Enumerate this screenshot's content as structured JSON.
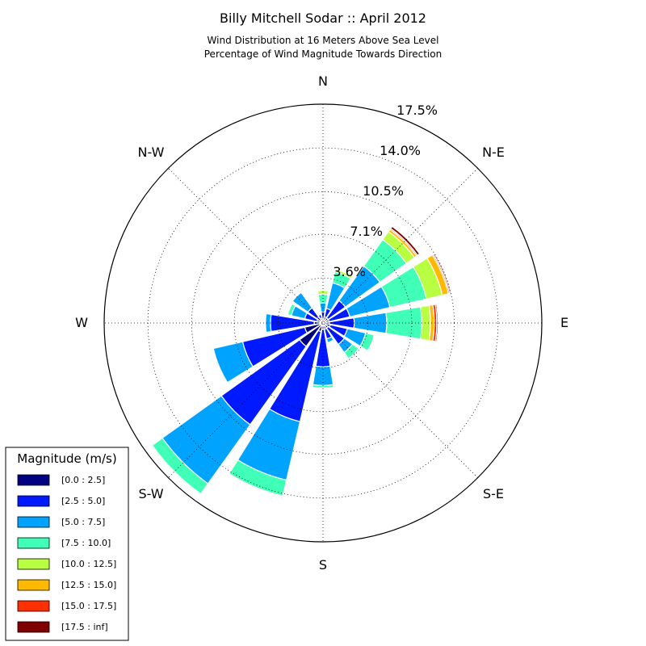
{
  "chart_data": {
    "type": "windrose",
    "title": "Billy Mitchell Sodar :: April 2012",
    "subtitle_lines": [
      "Wind Distribution at 16 Meters Above Sea Level",
      "Percentage of Wind Magnitude Towards Direction"
    ],
    "radial_ticks": [
      "3.6%",
      "7.1%",
      "10.5%",
      "14.0%",
      "17.5%"
    ],
    "radial_tick_values": [
      3.6,
      7.1,
      10.5,
      14.0,
      17.5
    ],
    "r_max": 17.5,
    "grid": true,
    "directions": [
      "N",
      "N-E",
      "E",
      "S-E",
      "S",
      "S-W",
      "W",
      "N-W"
    ],
    "legend": {
      "title": "Magnitude (m/s)",
      "placement": "lower-left",
      "bins": [
        "[0.0 : 2.5]",
        "[2.5 : 5.0]",
        "[5.0 : 7.5]",
        "[7.5 : 10.0]",
        "[10.0 : 12.5]",
        "[12.5 : 15.0]",
        "[15.0 : 17.5]",
        "[17.5 : inf]"
      ],
      "colors": [
        "#000080",
        "#0019ff",
        "#00a4ff",
        "#40ffb7",
        "#b7ff40",
        "#ffb900",
        "#ff3000",
        "#800000"
      ]
    },
    "sectors": [
      {
        "angle": 0,
        "cumulative": [
          0.4,
          0.9,
          1.6,
          2.3,
          2.6
        ]
      },
      {
        "angle": 22.5,
        "cumulative": [
          0.5,
          1.2,
          3.3,
          4.2,
          4.4
        ]
      },
      {
        "angle": 45,
        "cumulative": [
          0.5,
          2.2,
          5.6,
          8.2,
          9.0,
          9.2,
          9.3,
          9.5
        ]
      },
      {
        "angle": 67.5,
        "cumulative": [
          0.5,
          2.2,
          5.5,
          8.5,
          9.8,
          10.3,
          10.4,
          10.5
        ]
      },
      {
        "angle": 90,
        "cumulative": [
          0.5,
          2.5,
          5.1,
          7.9,
          8.6,
          8.9,
          9.1,
          9.2
        ]
      },
      {
        "angle": 112.5,
        "cumulative": [
          0.6,
          2.0,
          3.5,
          4.2
        ]
      },
      {
        "angle": 135,
        "cumulative": [
          0.5,
          2.1,
          2.9,
          3.5
        ]
      },
      {
        "angle": 157.5,
        "cumulative": [
          0.5,
          1.3,
          1.6
        ]
      },
      {
        "angle": 180,
        "cumulative": [
          0.5,
          3.5,
          5.0,
          5.2
        ]
      },
      {
        "angle": 202.5,
        "cumulative": [
          0.7,
          8.1,
          12.9,
          14.2
        ]
      },
      {
        "angle": 225,
        "cumulative": [
          2.3,
          10.0,
          15.8,
          16.8
        ]
      },
      {
        "angle": 247.5,
        "cumulative": [
          1.5,
          6.6,
          9.0
        ]
      },
      {
        "angle": 270,
        "cumulative": [
          0.7,
          4.2,
          4.6
        ]
      },
      {
        "angle": 292.5,
        "cumulative": [
          0.5,
          1.5,
          2.6,
          2.9
        ]
      },
      {
        "angle": 315,
        "cumulative": [
          0.6,
          1.5,
          3.0
        ]
      },
      {
        "angle": 337.5,
        "cumulative": [
          0.4,
          0.7
        ]
      }
    ]
  }
}
